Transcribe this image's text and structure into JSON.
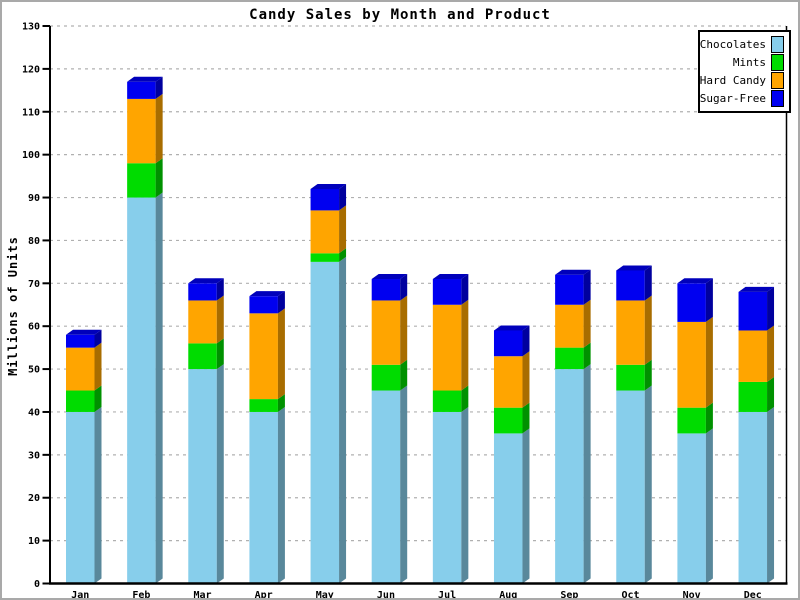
{
  "title": "Candy Sales by Month and Product",
  "chart_data": {
    "type": "bar",
    "stacked": true,
    "effect": "pseudo-3d",
    "title": "Candy Sales by Month and Product",
    "xlabel": "",
    "ylabel": "Millions of Units",
    "categories": [
      "Jan",
      "Feb",
      "Mar",
      "Apr",
      "May",
      "Jun",
      "Jul",
      "Aug",
      "Sep",
      "Oct",
      "Nov",
      "Dec"
    ],
    "series": [
      {
        "name": "Chocolates",
        "color": "#87CEEB",
        "values": [
          40,
          90,
          50,
          40,
          75,
          45,
          40,
          35,
          50,
          45,
          35,
          40
        ]
      },
      {
        "name": "Mints",
        "color": "#00DC00",
        "values": [
          5,
          8,
          6,
          3,
          2,
          6,
          5,
          6,
          5,
          6,
          6,
          7
        ]
      },
      {
        "name": "Hard Candy",
        "color": "#FFA500",
        "values": [
          10,
          15,
          10,
          20,
          10,
          15,
          20,
          12,
          10,
          15,
          20,
          12
        ]
      },
      {
        "name": "Sugar-Free",
        "color": "#0000F0",
        "values": [
          3,
          4,
          4,
          4,
          5,
          5,
          6,
          6,
          7,
          7,
          9,
          9
        ]
      }
    ],
    "totals": [
      58,
      117,
      70,
      67,
      92,
      71,
      71,
      59,
      72,
      73,
      70,
      68
    ],
    "ylim": [
      0,
      130
    ],
    "ytick_step": 10,
    "yticks": [
      0,
      10,
      20,
      30,
      40,
      50,
      60,
      70,
      80,
      90,
      100,
      110,
      120,
      130
    ],
    "grid": "horizontal-dashed",
    "grid_color": "#b0b0b0",
    "axis_color": "#000000",
    "legend_position": "top-right",
    "legend_entries": [
      "Chocolates",
      "Mints",
      "Hard Candy",
      "Sugar-Free"
    ]
  }
}
